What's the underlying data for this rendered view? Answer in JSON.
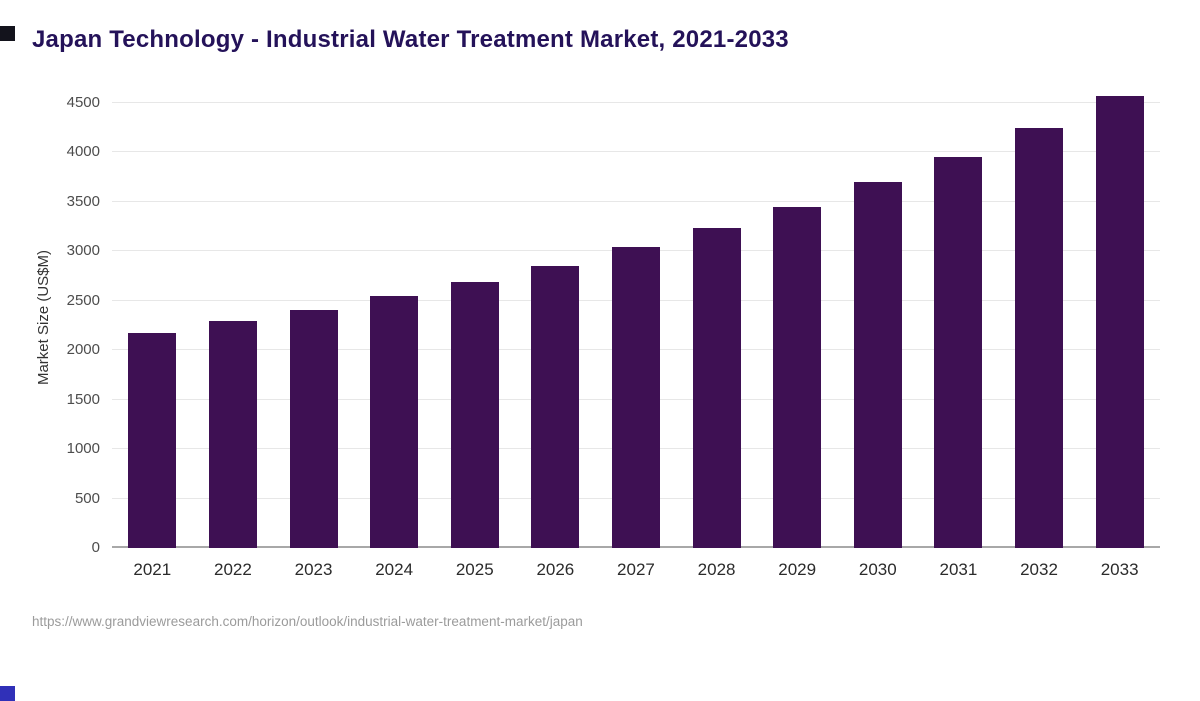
{
  "header": {
    "title": "Japan Technology - Industrial Water Treatment Market, 2021-2033",
    "title_color": "#241259"
  },
  "footer": {
    "source": "https://www.grandviewresearch.com/horizon/outlook/industrial-water-treatment-market/japan"
  },
  "decor": {
    "top_left_square_color": "#13131c",
    "bottom_left_square_color": "#3030b8"
  },
  "chart_data": {
    "type": "bar",
    "title": "Japan Technology - Industrial Water Treatment Market, 2021-2033",
    "categories": [
      "2021",
      "2022",
      "2023",
      "2024",
      "2025",
      "2026",
      "2027",
      "2028",
      "2029",
      "2030",
      "2031",
      "2032",
      "2033"
    ],
    "values": [
      2170,
      2290,
      2410,
      2550,
      2690,
      2855,
      3040,
      3235,
      3450,
      3695,
      3950,
      4245,
      4570
    ],
    "xlabel": "",
    "ylabel": "Market Size (US$M)",
    "ylim": [
      0,
      4500
    ],
    "yticks": [
      0,
      500,
      1000,
      1500,
      2000,
      2500,
      3000,
      3500,
      4000,
      4500
    ],
    "scale_max": 4650,
    "grid": "horizontal",
    "legend": "none",
    "bar_color": "#3e1053"
  }
}
